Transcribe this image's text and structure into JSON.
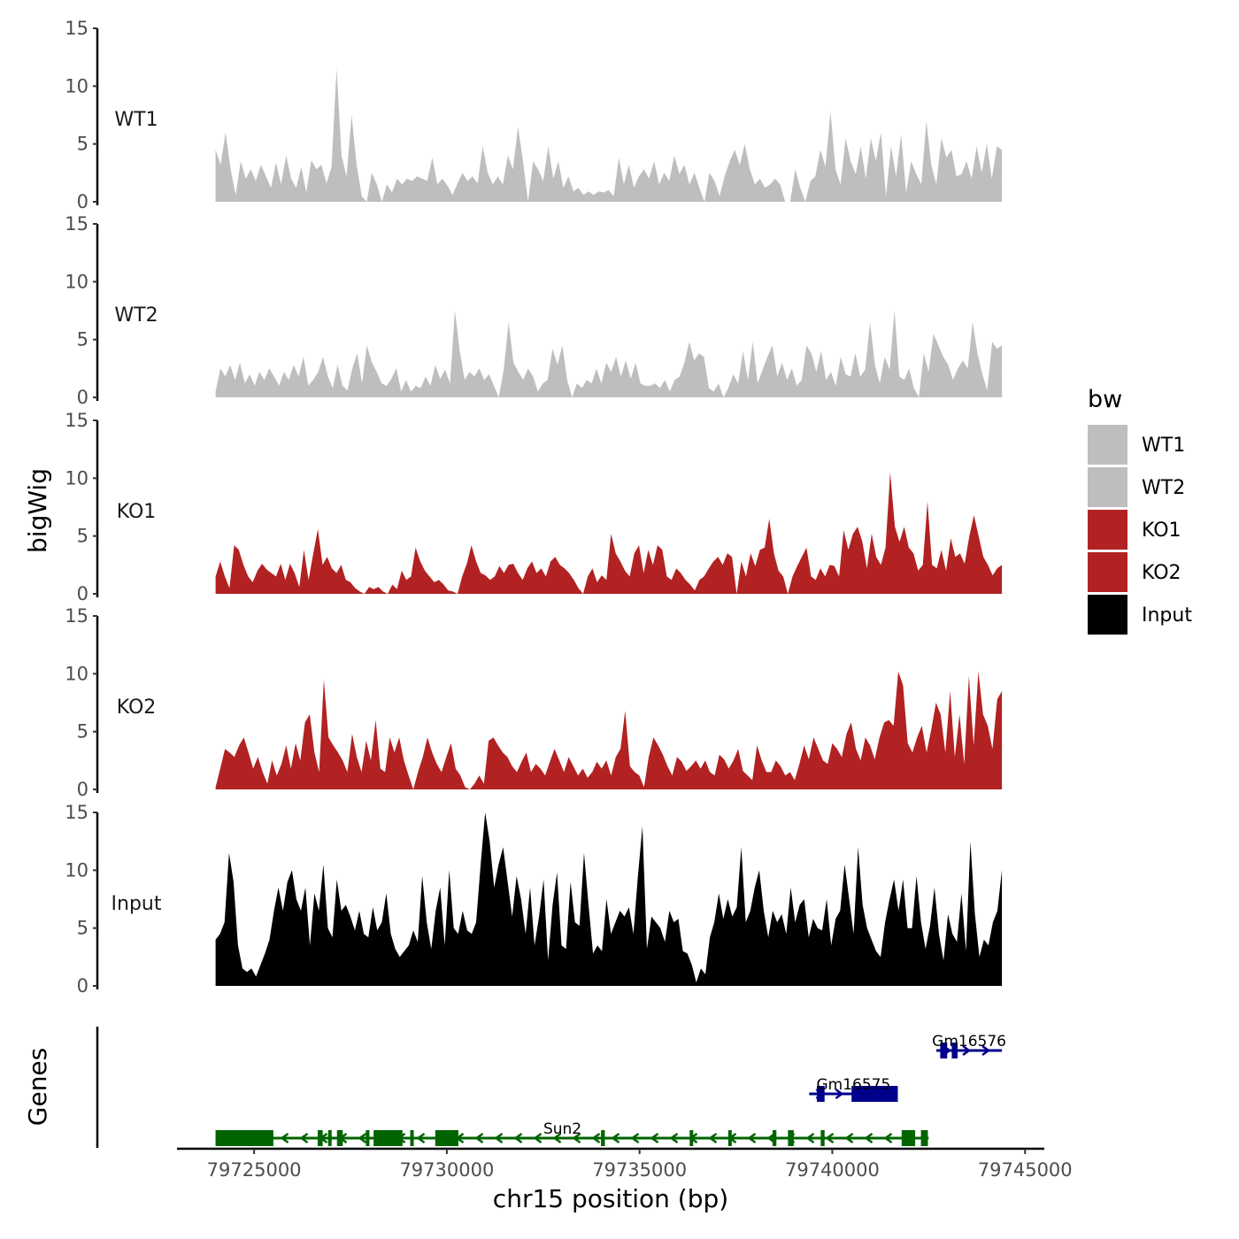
{
  "chart_data": {
    "type": "area",
    "title": "",
    "xlabel": "chr15 position (bp)",
    "ylabel_tracks": "bigWig",
    "ylabel_genes": "Genes",
    "xlim": [
      79723000,
      79745500
    ],
    "x_ticks": [
      79725000,
      79730000,
      79735000,
      79740000,
      79745000
    ],
    "x_tick_labels": [
      "79725000",
      "79730000",
      "79735000",
      "79740000",
      "79745000"
    ],
    "ylim": [
      0,
      15
    ],
    "y_ticks": [
      0,
      5,
      10,
      15
    ],
    "y_tick_labels": [
      "0",
      "5",
      "10",
      "15"
    ],
    "x_start": 79724000,
    "x_end": 79744400,
    "legend": {
      "title": "bw",
      "position": "right",
      "entries": [
        {
          "label": "WT1",
          "color": "#bebebe"
        },
        {
          "label": "WT2",
          "color": "#bebebe"
        },
        {
          "label": "KO1",
          "color": "#b22222"
        },
        {
          "label": "KO2",
          "color": "#b22222"
        },
        {
          "label": "Input",
          "color": "#000000"
        }
      ]
    },
    "series": [
      {
        "name": "WT1",
        "color": "#bebebe",
        "values": [
          4.5,
          3.2,
          6,
          2.8,
          0.6,
          3.5,
          2,
          2.8,
          1.8,
          3.2,
          2.2,
          1.2,
          3.4,
          1.5,
          4,
          2,
          1.2,
          3,
          0.8,
          3.6,
          2.8,
          3.2,
          1.6,
          3,
          11.5,
          4,
          2.2,
          7.5,
          3.2,
          0.5,
          0,
          2.5,
          1.5,
          0,
          1.5,
          0.8,
          2,
          1.5,
          2,
          1.8,
          2.2,
          2,
          1.8,
          3.8,
          1.5,
          2,
          1.4,
          0.6,
          1.6,
          2.5,
          1.8,
          2.2,
          1.6,
          4.8,
          2.5,
          1.5,
          2.2,
          1.5,
          4,
          2.8,
          6.5,
          3.5,
          0,
          3.5,
          2.8,
          1.8,
          4.8,
          2,
          3.5,
          1.2,
          2.2,
          0.9,
          1.2,
          0.6,
          0.9,
          0.6,
          0.9,
          0.8,
          1,
          0.5,
          3.8,
          1.5,
          3.2,
          1.2,
          2.2,
          2.8,
          2,
          3.5,
          1.5,
          2.5,
          1.8,
          4,
          2.4,
          3.2,
          1.5,
          2.5,
          1.2,
          0,
          2.5,
          1.8,
          0.5,
          2.2,
          3.5,
          4.5,
          3.2,
          5,
          2.8,
          1.5,
          2,
          1.2,
          1.5,
          2,
          1.5,
          0,
          0,
          2.8,
          1.2,
          0,
          1.8,
          2.2,
          4.5,
          3,
          7.8,
          2.8,
          1.5,
          5.5,
          3.5,
          2.4,
          4.8,
          2,
          5.5,
          3.5,
          6,
          0.5,
          4.8,
          2.2,
          5.8,
          0.8,
          3.5,
          2.4,
          1.5,
          7,
          3.2,
          1.5,
          5.5,
          3.8,
          4.5,
          2.2,
          2.4,
          3.5,
          2,
          4.8,
          2.5,
          5,
          2,
          4.8,
          4.5
        ]
      },
      {
        "name": "WT2",
        "color": "#bebebe",
        "values": [
          0.5,
          2.5,
          1.8,
          2.8,
          1.5,
          3,
          1.2,
          2,
          1,
          2.2,
          1.5,
          2.5,
          1.8,
          1,
          2.2,
          1.5,
          2.8,
          1.8,
          3.5,
          1,
          1.5,
          2.2,
          3.5,
          1.8,
          0.8,
          2.8,
          1,
          0.6,
          2.5,
          3.8,
          1.2,
          4.5,
          3,
          2.2,
          1.2,
          1,
          1.6,
          2.5,
          0.5,
          1.5,
          0.5,
          1,
          0.8,
          1.8,
          1,
          2.8,
          1.6,
          2.4,
          1.2,
          7.5,
          4,
          1.5,
          2.2,
          1.8,
          2.5,
          1.5,
          2,
          1,
          0,
          2.4,
          6.5,
          3,
          2.2,
          1.5,
          2.5,
          1.8,
          0.5,
          1.2,
          1.5,
          4.2,
          2.8,
          4.5,
          1.5,
          0,
          1.2,
          0.8,
          1.5,
          1.2,
          2.5,
          1.2,
          3,
          2.2,
          3.5,
          1.8,
          3.2,
          1.6,
          3,
          1.2,
          1,
          1,
          1.2,
          0.8,
          1.5,
          0.5,
          1.5,
          1.8,
          3,
          4.8,
          3.2,
          3.8,
          3.5,
          0.8,
          0.5,
          1.2,
          0,
          0.8,
          2,
          1.2,
          4,
          1.5,
          4.8,
          1.2,
          2.4,
          3.5,
          4.5,
          1.8,
          3,
          1.5,
          2.5,
          1,
          1.5,
          4.5,
          3.8,
          2.2,
          4,
          1.5,
          2.2,
          1,
          3.5,
          2,
          1.8,
          3.8,
          1.8,
          2.4,
          6.5,
          2.8,
          1.2,
          3.5,
          2.4,
          7.5,
          1.8,
          1.5,
          2.5,
          0.8,
          0,
          3.8,
          2.2,
          5.5,
          4.5,
          3.5,
          2.8,
          1.5,
          2.5,
          3.2,
          2.5,
          6.5,
          3.8,
          2,
          0.6,
          4.8,
          4.2,
          4.5
        ]
      },
      {
        "name": "KO1",
        "color": "#b22222",
        "values": [
          1.5,
          2.8,
          1.5,
          0.5,
          4.2,
          3.8,
          2.5,
          1.5,
          1,
          2,
          2.6,
          2.1,
          1.8,
          1.5,
          2.6,
          1.2,
          2.6,
          1.8,
          0.6,
          3.8,
          1.2,
          3.5,
          5.6,
          2.5,
          3.2,
          2.2,
          1.8,
          2.5,
          1.2,
          1,
          0.5,
          0.2,
          0,
          0.6,
          0.4,
          0.6,
          0.2,
          0,
          0.8,
          0.4,
          2,
          1.2,
          1.5,
          4,
          2.8,
          2,
          1.5,
          1,
          1.2,
          0.8,
          0.3,
          0.2,
          0,
          1.5,
          2.6,
          4.2,
          2.8,
          1.8,
          1.6,
          1.2,
          1.5,
          2.4,
          1.8,
          2.5,
          2.6,
          1.8,
          1.2,
          2.2,
          2.8,
          1.8,
          2.2,
          1.5,
          2.8,
          3.2,
          2.5,
          2.2,
          1.8,
          1.2,
          0.5,
          0,
          1.5,
          2.2,
          1,
          1.6,
          1.2,
          5.2,
          3.5,
          2.8,
          2,
          1.5,
          3.5,
          4.2,
          1.8,
          3.8,
          2.5,
          4.2,
          3.8,
          1.5,
          1.2,
          2.2,
          1.8,
          1.2,
          0.8,
          0.3,
          1.2,
          1.5,
          2.2,
          2.8,
          3.2,
          2.5,
          3.5,
          3.2,
          0,
          2.8,
          1.5,
          3.5,
          2.4,
          3.8,
          4,
          6.5,
          3.5,
          2,
          1.5,
          0,
          1.5,
          2.4,
          3.2,
          4,
          1.5,
          1.2,
          2.2,
          1.5,
          2.5,
          2.4,
          1.5,
          5.5,
          3.8,
          5.2,
          5.8,
          4.5,
          2.2,
          5.2,
          3.2,
          2.5,
          4,
          10.5,
          5.8,
          4.5,
          5.8,
          4,
          3.5,
          2,
          2.5,
          8,
          2.5,
          2.2,
          3.8,
          2,
          4.8,
          3.2,
          3.5,
          2.6,
          5,
          6.8,
          5,
          3.2,
          2.5,
          1.6,
          2.2,
          2.5
        ]
      },
      {
        "name": "KO2",
        "color": "#b22222",
        "values": [
          0.2,
          1.8,
          3.5,
          3.2,
          2.8,
          3.8,
          4.5,
          3.2,
          1.8,
          2.8,
          1.5,
          0.5,
          2.5,
          1.2,
          2.2,
          3.8,
          1.8,
          4,
          2.5,
          5.8,
          6.5,
          3.2,
          1.5,
          9.5,
          4.5,
          3.8,
          3.2,
          2.5,
          1.5,
          4.8,
          2.8,
          1.5,
          4.2,
          2.5,
          6,
          1.8,
          1.5,
          4.5,
          3.2,
          4.5,
          2.5,
          1.2,
          0,
          1.5,
          2.8,
          4.5,
          3.2,
          2.2,
          1.5,
          2.8,
          4,
          1.8,
          1.2,
          0.2,
          0,
          0.5,
          1.2,
          0.5,
          4.2,
          4.5,
          3.8,
          3.2,
          2.8,
          2,
          1.5,
          2.4,
          3.2,
          1.5,
          2.2,
          1.8,
          1.2,
          2.4,
          3.5,
          2.5,
          1.5,
          2.8,
          2,
          1.2,
          1.8,
          1,
          1.5,
          2.4,
          1.8,
          2.5,
          1.2,
          2.8,
          3.5,
          6.8,
          2,
          1.5,
          1.2,
          0.2,
          2.8,
          4.5,
          3.8,
          3,
          2,
          1.2,
          2.8,
          2.4,
          1.6,
          2,
          2.5,
          1.8,
          2.5,
          1.5,
          1.2,
          3,
          2.6,
          1.8,
          2.5,
          3.5,
          1.6,
          1.2,
          0.8,
          3.8,
          2.5,
          1.5,
          1.5,
          2.5,
          2,
          1.2,
          1.5,
          0.8,
          2.2,
          3.8,
          2.6,
          4.5,
          3.5,
          2.5,
          2.2,
          4,
          3.5,
          2.8,
          4.8,
          5.8,
          3.5,
          2.5,
          4.5,
          3.8,
          2.6,
          4.5,
          5.8,
          6,
          5.5,
          10.2,
          9,
          4,
          3.2,
          4.5,
          5.5,
          3.2,
          5.2,
          7.5,
          6.5,
          3.2,
          8.5,
          2.8,
          6.5,
          2.2,
          9.8,
          3.8,
          10.2,
          6.5,
          5.5,
          3.5,
          7.8,
          8.5
        ]
      },
      {
        "name": "Input",
        "color": "#000000",
        "values": [
          4,
          4.5,
          5.5,
          11.5,
          9,
          3.5,
          1.5,
          1.2,
          1.5,
          0.8,
          1.8,
          2.8,
          4,
          6.5,
          8.5,
          6.5,
          9,
          10,
          7.5,
          6.5,
          8.5,
          3.5,
          8,
          6.5,
          10.5,
          5,
          4.2,
          9.2,
          6.5,
          7,
          6,
          4.8,
          6.5,
          4.5,
          4.2,
          6.8,
          4.8,
          5.5,
          8,
          4.5,
          3.2,
          2.5,
          3,
          3.5,
          4.8,
          3.8,
          9.5,
          5.5,
          3.2,
          6.5,
          8.5,
          3.5,
          10,
          5,
          4.5,
          6.5,
          4.8,
          4.5,
          5.5,
          10.5,
          15,
          12.5,
          8.5,
          10.5,
          12,
          9,
          6,
          9.5,
          7.5,
          4.5,
          8.5,
          3.5,
          6,
          9.2,
          2.2,
          7,
          9.8,
          3.5,
          3.2,
          9,
          5.5,
          5.2,
          11.5,
          7,
          2.8,
          3.5,
          3,
          7.5,
          4.5,
          5.5,
          6.5,
          6,
          6.8,
          4.5,
          9.5,
          13.8,
          3.2,
          6,
          5.5,
          5,
          3.8,
          6.5,
          5.5,
          5.8,
          3,
          2.8,
          1.8,
          0.3,
          1.5,
          1,
          4.2,
          5.5,
          8,
          5.8,
          7.5,
          6,
          6.8,
          12,
          5.5,
          6.5,
          8.5,
          10,
          6.5,
          4.2,
          6.5,
          5.5,
          6.2,
          4.5,
          8.5,
          5.5,
          7,
          7.5,
          4.2,
          5.8,
          5,
          4.8,
          7.5,
          3.5,
          5.8,
          6.5,
          10.5,
          7.5,
          4.5,
          12,
          7,
          5,
          4,
          3,
          2.5,
          5.5,
          7.5,
          9.2,
          6.5,
          9.2,
          5,
          5,
          9.5,
          5.5,
          3.2,
          5.2,
          8.5,
          4.5,
          2.2,
          6.2,
          4.5,
          3.8,
          8,
          3,
          12.5,
          6.2,
          2.5,
          4,
          3.5,
          5.5,
          6.5,
          10
        ]
      }
    ],
    "genes": [
      {
        "name": "Sun2",
        "strand": "-",
        "color": "#006400",
        "start": 79724000,
        "end": 79742500,
        "exons": [
          [
            79724000,
            79725500
          ],
          [
            79726650,
            79726780
          ],
          [
            79726920,
            79727000
          ],
          [
            79727150,
            79727300
          ],
          [
            79727900,
            79727980
          ],
          [
            79728100,
            79728850
          ],
          [
            79729050,
            79729120
          ],
          [
            79729700,
            79730300
          ],
          [
            79734000,
            79734100
          ],
          [
            79736300,
            79736380
          ],
          [
            79737300,
            79737380
          ],
          [
            79738450,
            79738550
          ],
          [
            79738850,
            79739000
          ],
          [
            79739700,
            79739800
          ],
          [
            79741800,
            79742150
          ],
          [
            79742300,
            79742480
          ]
        ]
      },
      {
        "name": "Gm16575",
        "strand": "+",
        "color": "#00008b",
        "start": 79739400,
        "end": 79741700,
        "exons": [
          [
            79739600,
            79739800
          ],
          [
            79740500,
            79741700
          ]
        ]
      },
      {
        "name": "Gm16576",
        "strand": "+",
        "color": "#00008b",
        "start": 79742700,
        "end": 79744400,
        "exons": [
          [
            79742800,
            79742980
          ],
          [
            79743100,
            79743250
          ]
        ]
      }
    ]
  }
}
